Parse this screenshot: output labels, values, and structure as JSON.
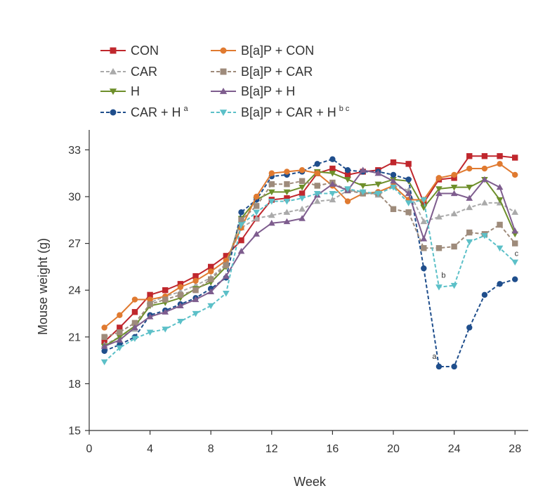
{
  "chart_data": {
    "type": "line",
    "title": "",
    "xlabel": "Week",
    "ylabel": "Mouse weight (g)",
    "xlim": [
      0,
      29
    ],
    "ylim": [
      15,
      34
    ],
    "xticks": [
      0,
      4,
      8,
      12,
      16,
      20,
      24,
      28
    ],
    "yticks": [
      15,
      18,
      21,
      24,
      27,
      30,
      33
    ],
    "legend_position": "top-left",
    "x": [
      1,
      2,
      3,
      4,
      5,
      6,
      7,
      8,
      9,
      10,
      11,
      12,
      13,
      14,
      15,
      16,
      17,
      18,
      19,
      20,
      21,
      22,
      23,
      24,
      25,
      26,
      27,
      28
    ],
    "series": [
      {
        "name": "CON",
        "sup": "",
        "color": "#c0272d",
        "marker": "square",
        "dash": false,
        "values": [
          20.7,
          21.6,
          22.6,
          23.7,
          24.0,
          24.4,
          24.9,
          25.5,
          26.2,
          27.2,
          28.6,
          29.8,
          29.9,
          30.2,
          31.5,
          31.8,
          31.4,
          31.6,
          31.7,
          32.2,
          32.1,
          29.6,
          31.1,
          31.2,
          32.6,
          32.6,
          32.6,
          32.5
        ]
      },
      {
        "name": "CAR",
        "sup": "",
        "color": "#aaaaaa",
        "marker": "triangle-up",
        "dash": true,
        "values": [
          20.5,
          21.0,
          21.5,
          23.2,
          23.6,
          23.9,
          24.3,
          24.8,
          25.7,
          28.0,
          28.6,
          28.8,
          29.0,
          29.2,
          29.7,
          29.8,
          30.4,
          30.3,
          30.1,
          30.7,
          30.4,
          28.4,
          28.7,
          28.9,
          29.3,
          29.6,
          29.6,
          29.0
        ]
      },
      {
        "name": "H",
        "sup": "",
        "color": "#6e8f2b",
        "marker": "triangle-down",
        "dash": false,
        "values": [
          20.4,
          21.0,
          21.7,
          23.0,
          23.2,
          23.5,
          24.1,
          24.5,
          25.5,
          28.6,
          29.8,
          30.3,
          30.3,
          30.6,
          31.6,
          31.5,
          31.1,
          30.7,
          30.8,
          31.1,
          31.0,
          29.3,
          30.5,
          30.6,
          30.6,
          31.1,
          29.8,
          27.6
        ]
      },
      {
        "name": "CAR + H",
        "sup": "a",
        "color": "#1f4e8c",
        "marker": "circle",
        "dash": true,
        "values": [
          20.1,
          20.5,
          21.0,
          22.4,
          22.7,
          23.1,
          23.5,
          24.1,
          24.8,
          29.0,
          29.8,
          31.3,
          31.4,
          31.6,
          32.1,
          32.4,
          31.7,
          31.6,
          31.6,
          31.4,
          31.1,
          25.4,
          19.1,
          19.1,
          21.6,
          23.7,
          24.4,
          24.7
        ]
      },
      {
        "name": "B[a]P + CON",
        "sup": "",
        "color": "#e07a30",
        "marker": "circle",
        "dash": false,
        "values": [
          21.6,
          22.4,
          23.4,
          23.4,
          23.6,
          24.2,
          24.6,
          25.2,
          25.9,
          28.0,
          30.0,
          31.5,
          31.6,
          31.7,
          31.5,
          30.7,
          29.7,
          30.2,
          30.3,
          30.7,
          29.8,
          29.8,
          31.2,
          31.4,
          31.8,
          31.8,
          32.1,
          31.4
        ]
      },
      {
        "name": "B[a]P + CAR",
        "sup": "",
        "color": "#9e8b7b",
        "marker": "square",
        "dash": true,
        "values": [
          21.0,
          21.3,
          21.9,
          23.1,
          23.4,
          23.7,
          24.0,
          24.7,
          25.6,
          28.5,
          29.4,
          30.8,
          30.8,
          31.0,
          30.7,
          30.9,
          30.4,
          30.2,
          30.2,
          29.2,
          29.0,
          26.7,
          26.7,
          26.8,
          27.7,
          27.6,
          28.2,
          27.0
        ]
      },
      {
        "name": "B[a]P + H",
        "sup": "",
        "color": "#7e5d8e",
        "marker": "triangle-up",
        "dash": false,
        "values": [
          20.4,
          20.8,
          21.6,
          22.3,
          22.6,
          23.0,
          23.4,
          23.9,
          24.9,
          26.5,
          27.6,
          28.3,
          28.4,
          28.6,
          30.1,
          30.8,
          30.4,
          31.7,
          31.5,
          31.0,
          30.2,
          27.3,
          30.2,
          30.2,
          29.9,
          31.1,
          30.6,
          27.8
        ]
      },
      {
        "name": "B[a]P + CAR + H",
        "sup": "b c",
        "color": "#5cc0c8",
        "marker": "triangle-down",
        "dash": true,
        "values": [
          19.4,
          20.3,
          20.9,
          21.3,
          21.5,
          22.0,
          22.5,
          23.0,
          23.8,
          28.2,
          29.0,
          29.7,
          29.7,
          29.9,
          30.2,
          30.2,
          30.5,
          30.3,
          30.2,
          30.6,
          29.6,
          29.8,
          24.2,
          24.3,
          27.1,
          27.5,
          26.7,
          25.8
        ]
      }
    ],
    "annotations": [
      {
        "text": "a",
        "x": 22.7,
        "y": 19.6
      },
      {
        "text": "b",
        "x": 23.3,
        "y": 24.8
      },
      {
        "text": "c",
        "x": 28.1,
        "y": 26.2
      }
    ]
  }
}
